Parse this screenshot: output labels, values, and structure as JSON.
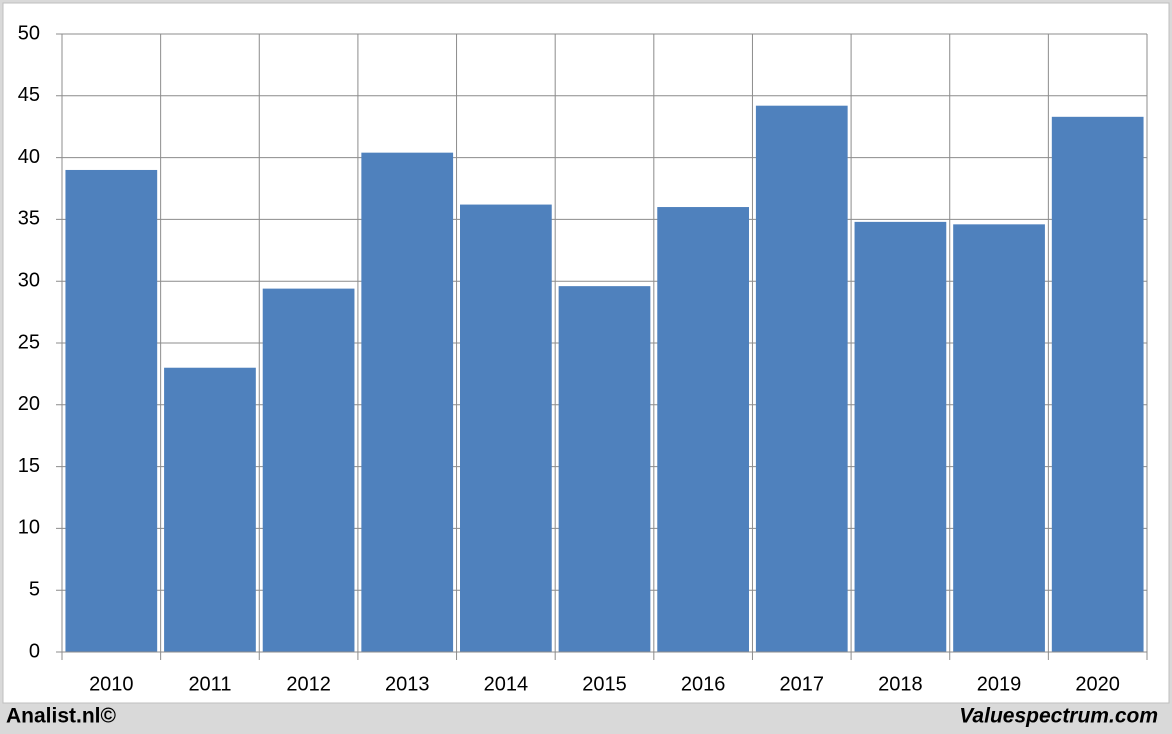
{
  "chart_data": {
    "type": "bar",
    "categories": [
      "2010",
      "2011",
      "2012",
      "2013",
      "2014",
      "2015",
      "2016",
      "2017",
      "2018",
      "2019",
      "2020"
    ],
    "values": [
      39.0,
      23.0,
      29.4,
      40.4,
      36.2,
      29.6,
      36.0,
      44.2,
      34.8,
      34.6,
      43.3
    ],
    "color": "#4f81bd",
    "ylim": [
      0,
      50
    ],
    "yticks": [
      0,
      5,
      10,
      15,
      20,
      25,
      30,
      35,
      40,
      45,
      50
    ],
    "grid": true
  },
  "footer": {
    "left": "Analist.nl©",
    "right": "Valuespectrum.com"
  }
}
